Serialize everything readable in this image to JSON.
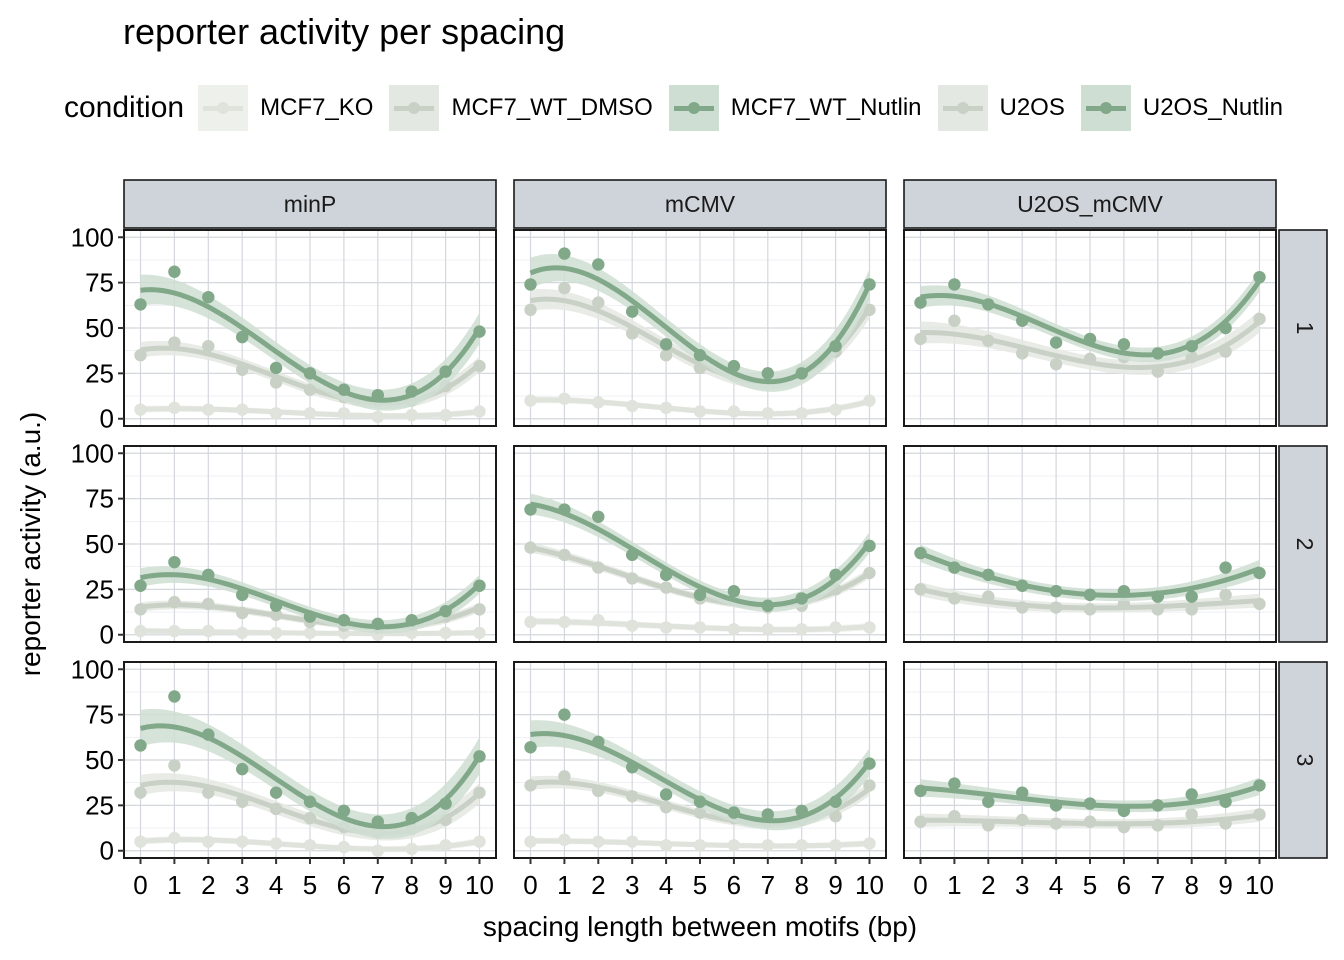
{
  "chart_data": {
    "type": "scatter",
    "title": "reporter activity per spacing",
    "xlabel": "spacing length between motifs (bp)",
    "ylabel": "reporter activity (a.u.)",
    "x": [
      0,
      1,
      2,
      3,
      4,
      5,
      6,
      7,
      8,
      9,
      10
    ],
    "xticks": [
      "0",
      "1",
      "2",
      "3",
      "4",
      "5",
      "6",
      "7",
      "8",
      "9",
      "10"
    ],
    "yticks": [
      0,
      25,
      50,
      75,
      100
    ],
    "ylim": [
      -4,
      104
    ],
    "grid": true,
    "legend": {
      "title": "condition",
      "position": "top",
      "entries": [
        {
          "name": "MCF7_KO",
          "color": "#dfe3dc",
          "band": "#eef0ec"
        },
        {
          "name": "MCF7_WT_DMSO",
          "color": "#c9d1c6",
          "band": "#e4e8e2"
        },
        {
          "name": "MCF7_WT_Nutlin",
          "color": "#80a889",
          "band": "#cfded2"
        },
        {
          "name": "U2OS",
          "color": "#c9d1c6",
          "band": "#e4e8e2"
        },
        {
          "name": "U2OS_Nutlin",
          "color": "#80a889",
          "band": "#cfded2"
        }
      ]
    },
    "facet_cols": [
      "minP",
      "mCMV",
      "U2OS_mCMV"
    ],
    "facet_rows": [
      "1",
      "2",
      "3"
    ],
    "panels": [
      {
        "col": "minP",
        "row": "1",
        "series": [
          {
            "name": "MCF7_KO",
            "values": [
              5,
              6,
              5,
              5,
              3,
              3,
              3,
              1,
              2,
              2,
              4
            ]
          },
          {
            "name": "MCF7_WT_DMSO",
            "values": [
              35,
              42,
              40,
              27,
              20,
              16,
              12,
              10,
              10,
              18,
              29
            ]
          },
          {
            "name": "MCF7_WT_Nutlin",
            "values": [
              63,
              81,
              67,
              45,
              28,
              25,
              16,
              13,
              15,
              26,
              48
            ]
          }
        ]
      },
      {
        "col": "mCMV",
        "row": "1",
        "series": [
          {
            "name": "MCF7_KO",
            "values": [
              10,
              11,
              9,
              7,
              6,
              4,
              4,
              3,
              3,
              5,
              10
            ]
          },
          {
            "name": "MCF7_WT_DMSO",
            "values": [
              60,
              72,
              64,
              47,
              35,
              28,
              24,
              22,
              27,
              37,
              60
            ]
          },
          {
            "name": "MCF7_WT_Nutlin",
            "values": [
              74,
              91,
              85,
              59,
              41,
              35,
              29,
              25,
              25,
              40,
              74
            ]
          }
        ]
      },
      {
        "col": "U2OS_mCMV",
        "row": "1",
        "series": [
          {
            "name": "U2OS",
            "values": [
              44,
              54,
              43,
              36,
              30,
              33,
              34,
              26,
              34,
              37,
              55
            ]
          },
          {
            "name": "U2OS_Nutlin",
            "values": [
              64,
              74,
              63,
              54,
              42,
              44,
              41,
              36,
              40,
              50,
              78
            ]
          }
        ]
      },
      {
        "col": "minP",
        "row": "2",
        "series": [
          {
            "name": "MCF7_KO",
            "values": [
              2,
              2,
              2,
              1,
              1,
              1,
              1,
              0,
              1,
              1,
              1
            ]
          },
          {
            "name": "MCF7_WT_DMSO",
            "values": [
              14,
              18,
              17,
              12,
              11,
              7,
              5,
              4,
              6,
              10,
              14
            ]
          },
          {
            "name": "MCF7_WT_Nutlin",
            "values": [
              27,
              40,
              33,
              22,
              16,
              10,
              8,
              6,
              8,
              13,
              27
            ]
          }
        ]
      },
      {
        "col": "mCMV",
        "row": "2",
        "series": [
          {
            "name": "MCF7_KO",
            "values": [
              7,
              7,
              8,
              5,
              4,
              4,
              3,
              3,
              3,
              4,
              4
            ]
          },
          {
            "name": "MCF7_WT_DMSO",
            "values": [
              48,
              44,
              37,
              31,
              26,
              20,
              20,
              15,
              16,
              25,
              34
            ]
          },
          {
            "name": "MCF7_WT_Nutlin",
            "values": [
              69,
              69,
              65,
              44,
              33,
              22,
              24,
              16,
              20,
              33,
              49
            ]
          }
        ]
      },
      {
        "col": "U2OS_mCMV",
        "row": "2",
        "series": [
          {
            "name": "U2OS",
            "values": [
              25,
              20,
              21,
              15,
              15,
              14,
              17,
              14,
              14,
              22,
              17
            ]
          },
          {
            "name": "U2OS_Nutlin",
            "values": [
              45,
              37,
              33,
              27,
              24,
              22,
              24,
              21,
              21,
              37,
              34
            ]
          }
        ]
      },
      {
        "col": "minP",
        "row": "3",
        "series": [
          {
            "name": "MCF7_KO",
            "values": [
              5,
              7,
              5,
              5,
              4,
              3,
              2,
              0,
              1,
              3,
              5
            ]
          },
          {
            "name": "MCF7_WT_DMSO",
            "values": [
              32,
              47,
              32,
              27,
              23,
              18,
              13,
              10,
              12,
              17,
              32
            ]
          },
          {
            "name": "MCF7_WT_Nutlin",
            "values": [
              58,
              85,
              64,
              45,
              32,
              27,
              22,
              16,
              18,
              26,
              52
            ]
          }
        ]
      },
      {
        "col": "mCMV",
        "row": "3",
        "series": [
          {
            "name": "MCF7_KO",
            "values": [
              5,
              6,
              5,
              5,
              3,
              3,
              3,
              3,
              3,
              3,
              4
            ]
          },
          {
            "name": "MCF7_WT_DMSO",
            "values": [
              36,
              41,
              33,
              30,
              24,
              21,
              18,
              16,
              17,
              19,
              36
            ]
          },
          {
            "name": "MCF7_WT_Nutlin",
            "values": [
              57,
              75,
              60,
              46,
              31,
              27,
              21,
              20,
              22,
              27,
              48
            ]
          }
        ]
      },
      {
        "col": "U2OS_mCMV",
        "row": "3",
        "series": [
          {
            "name": "U2OS",
            "values": [
              16,
              19,
              14,
              17,
              15,
              16,
              13,
              14,
              20,
              15,
              20
            ]
          },
          {
            "name": "U2OS_Nutlin",
            "values": [
              33,
              37,
              27,
              32,
              25,
              26,
              22,
              25,
              31,
              27,
              36
            ]
          }
        ]
      }
    ]
  }
}
